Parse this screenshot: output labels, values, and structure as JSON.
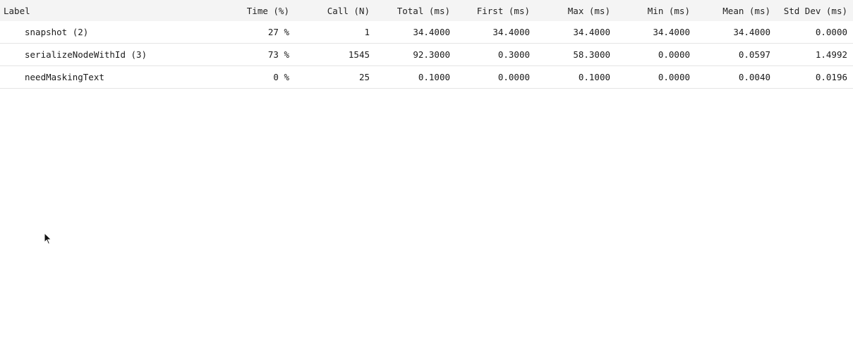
{
  "table": {
    "headers": {
      "label": "Label",
      "time": "Time (%)",
      "call": "Call (N)",
      "total": "Total (ms)",
      "first": "First (ms)",
      "max": "Max (ms)",
      "min": "Min (ms)",
      "mean": "Mean (ms)",
      "std": "Std Dev (ms)"
    },
    "rows": [
      {
        "label": "snapshot (2)",
        "time": "27 %",
        "call": "1",
        "total": "34.4000",
        "first": "34.4000",
        "max": "34.4000",
        "min": "34.4000",
        "mean": "34.4000",
        "std": "0.0000"
      },
      {
        "label": "serializeNodeWithId (3)",
        "time": "73 %",
        "call": "1545",
        "total": "92.3000",
        "first": "0.3000",
        "max": "58.3000",
        "min": "0.0000",
        "mean": "0.0597",
        "std": "1.4992"
      },
      {
        "label": "needMaskingText",
        "time": "0 %",
        "call": "25",
        "total": "0.1000",
        "first": "0.0000",
        "max": "0.1000",
        "min": "0.0000",
        "mean": "0.0040",
        "std": "0.0196"
      }
    ]
  },
  "cursor": {
    "icon": "mouse-pointer-icon"
  }
}
